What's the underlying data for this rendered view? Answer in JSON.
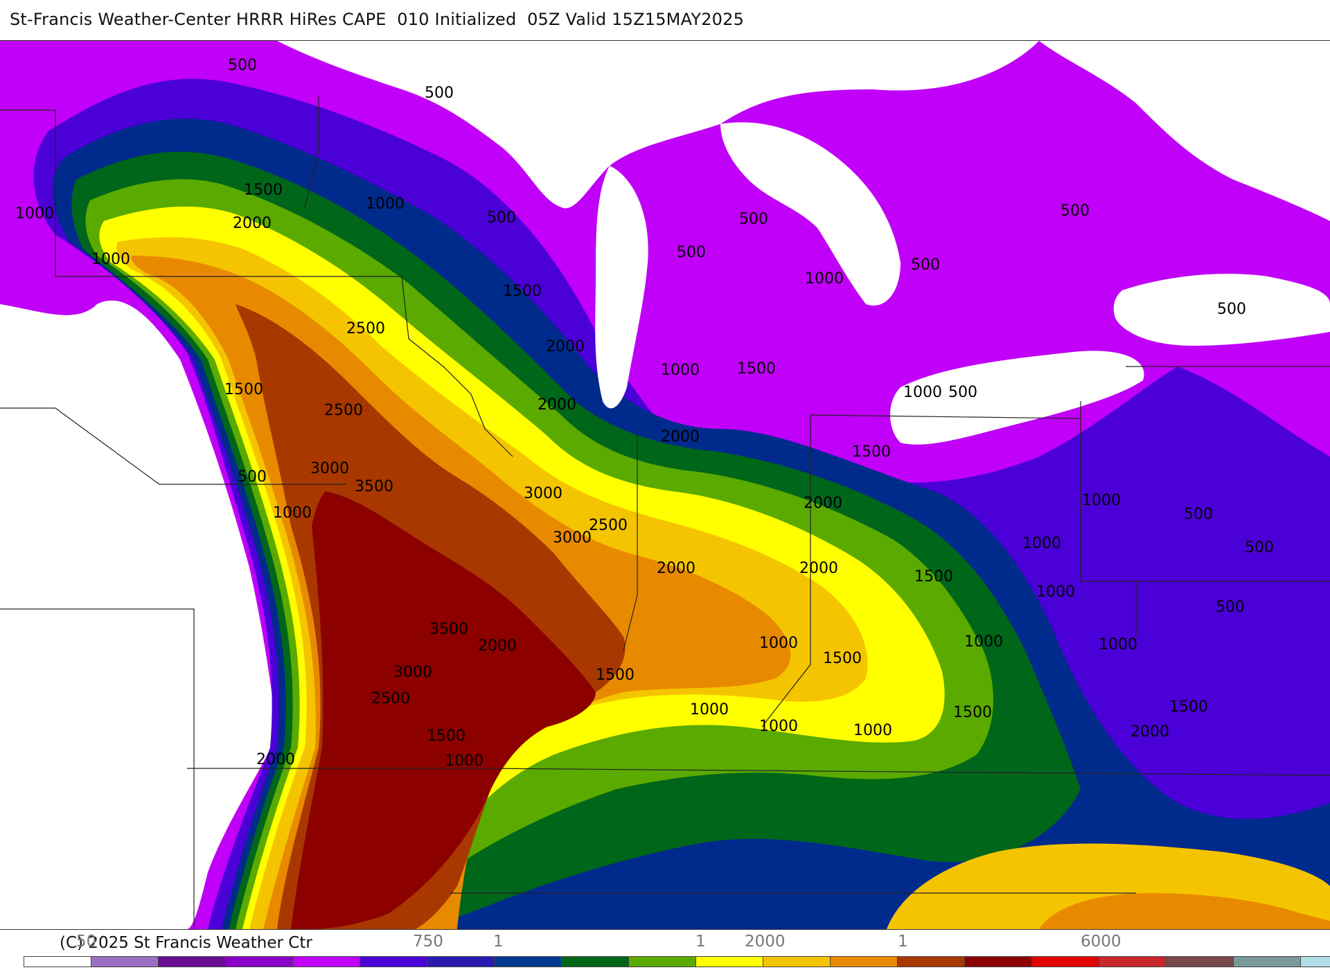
{
  "header": {
    "title": "St-Francis Weather-Center HRRR HiRes CAPE  010 Initialized  05Z Valid 15Z15MAY2025"
  },
  "footer": {
    "copyright": "(C) 2025 St Francis Weather Ctr",
    "legend_ticks": [
      "50",
      "750",
      "1",
      "1",
      "2000",
      "1",
      "6000"
    ]
  },
  "legend": {
    "colors": [
      "#ffffff",
      "#9b6fc4",
      "#6a0d91",
      "#8b00c8",
      "#c000f8",
      "#4b00d8",
      "#2a1ab0",
      "#003a90",
      "#00661a",
      "#5aaa00",
      "#ffff00",
      "#f5c400",
      "#e88a00",
      "#a83800",
      "#8c0000",
      "#e00000",
      "#c8282c",
      "#7a4a4a",
      "#7a9a9a",
      "#b0dde8"
    ]
  },
  "map": {
    "contour_labels": [
      "500",
      "500",
      "1000",
      "1500",
      "2000",
      "1000",
      "500",
      "1000",
      "500",
      "500",
      "1000",
      "500",
      "500",
      "1500",
      "2500",
      "2000",
      "1500",
      "2500",
      "2000",
      "1000",
      "1500",
      "2000",
      "1000",
      "500",
      "3000",
      "3500",
      "500",
      "3000",
      "1500",
      "2000",
      "1000",
      "1000",
      "2500",
      "3000",
      "1000",
      "500",
      "2000",
      "2000",
      "1500",
      "1000",
      "500",
      "500",
      "3500",
      "2000",
      "1000",
      "1500",
      "1000",
      "1000",
      "500",
      "3000",
      "1500",
      "2500",
      "1000",
      "1000",
      "1000",
      "1500",
      "1500",
      "2000",
      "1500",
      "1000",
      "2000"
    ]
  }
}
